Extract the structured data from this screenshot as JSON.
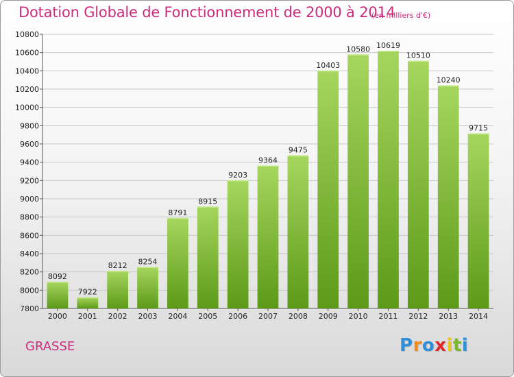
{
  "title": "Dotation Globale de Fonctionnement de 2000 à 2014",
  "subtitle": "(en milliers d'€)",
  "place": "GRASSE",
  "logo": {
    "text": "Proxiti",
    "letters": [
      {
        "ch": "P",
        "color": "#2f8fd8"
      },
      {
        "ch": "r",
        "color": "#f08a1c"
      },
      {
        "ch": "o",
        "color": "#2f8fd8"
      },
      {
        "ch": "x",
        "color": "#e0282c"
      },
      {
        "ch": "i",
        "color": "#f2c21a"
      },
      {
        "ch": "t",
        "color": "#7ab929"
      },
      {
        "ch": "i",
        "color": "#2f8fd8"
      }
    ]
  },
  "colors": {
    "title": "#cc2a7a",
    "bar_light": "#a6d65e",
    "bar_dark": "#5c9a18",
    "grid": "#c8c8c8"
  },
  "chart_data": {
    "type": "bar",
    "categories": [
      "2000",
      "2001",
      "2002",
      "2003",
      "2004",
      "2005",
      "2006",
      "2007",
      "2008",
      "2009",
      "2010",
      "2011",
      "2012",
      "2013",
      "2014"
    ],
    "values": [
      8092,
      7922,
      8212,
      8254,
      8791,
      8915,
      9203,
      9364,
      9475,
      10403,
      10580,
      10619,
      10510,
      10240,
      9715
    ],
    "ylim": [
      7800,
      10800
    ],
    "yticks": [
      7800,
      8000,
      8200,
      8400,
      8600,
      8800,
      9000,
      9200,
      9400,
      9600,
      9800,
      10000,
      10200,
      10400,
      10600,
      10800
    ],
    "grid": true
  }
}
